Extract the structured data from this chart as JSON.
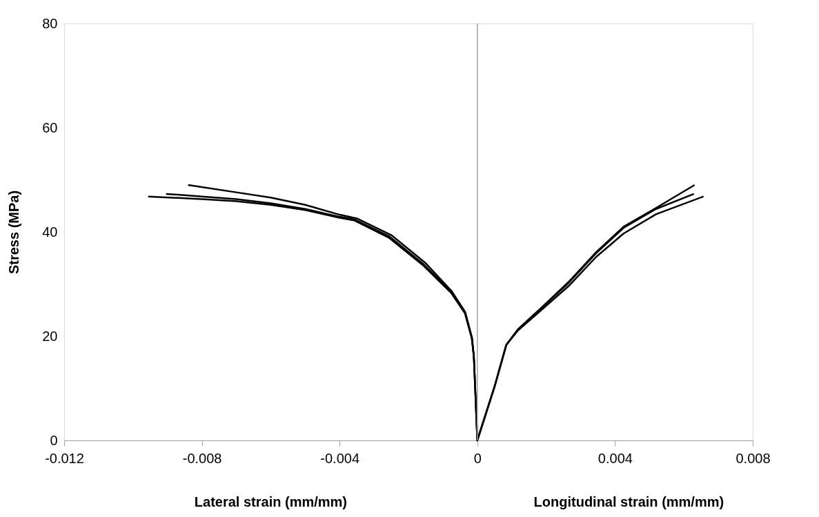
{
  "chart_data": {
    "type": "line",
    "xlabel": "Lateral strain (mm/mm)",
    "ylabel": "Stress  (MPa)",
    "annotations": [
      "Longitudinal strain (mm/mm)"
    ],
    "xlim": [
      -0.012,
      0.008
    ],
    "xticks": [
      -0.012,
      -0.008,
      -0.004,
      0,
      0.004,
      0.008
    ],
    "ylim": [
      0,
      80
    ],
    "yticks": [
      0,
      20,
      40,
      60,
      80
    ],
    "grid": false,
    "marker": "none",
    "line_style": "solid",
    "ref_lines": [
      {
        "axis": "x",
        "value": 0,
        "color": "#a0a0a0"
      }
    ],
    "series": [
      {
        "color": "#000000",
        "x": [
          -0.0084,
          -0.007,
          -0.006,
          -0.005,
          -0.004,
          -0.0035,
          -0.0025,
          -0.0015,
          -0.00074,
          -0.00035,
          -0.00015,
          -0.0001,
          -5e-05,
          0,
          0.0005,
          0.00084,
          0.00118,
          0.00184,
          0.00265,
          0.00345,
          0.00425,
          0.00519,
          0.00631
        ],
        "values": [
          49.0,
          47.6,
          46.6,
          45.2,
          43.3,
          42.6,
          39.4,
          34.0,
          28.6,
          24.6,
          19.6,
          16.0,
          8.1,
          0,
          10.3,
          18.3,
          21.3,
          25.3,
          30.4,
          36.1,
          41.0,
          44.6,
          49.0
        ]
      },
      {
        "color": "#000000",
        "x": [
          -0.00904,
          -0.008,
          -0.007,
          -0.006,
          -0.005,
          -0.004,
          -0.00357,
          -0.00257,
          -0.00156,
          -0.00076,
          -0.00036,
          -0.00016,
          -0.0001,
          -5e-05,
          0,
          0.0005,
          0.00084,
          0.00118,
          0.00184,
          0.00265,
          0.00345,
          0.00425,
          0.00519,
          0.00629
        ],
        "values": [
          47.3,
          46.8,
          46.3,
          45.5,
          44.4,
          42.9,
          42.4,
          39.2,
          33.8,
          28.5,
          24.5,
          19.6,
          16.0,
          8.1,
          0,
          10.3,
          18.3,
          21.3,
          25.3,
          30.2,
          35.9,
          40.8,
          44.4,
          47.3
        ]
      },
      {
        "color": "#000000",
        "x": [
          -0.00956,
          -0.008,
          -0.007,
          -0.006,
          -0.005,
          -0.004,
          -0.00357,
          -0.00257,
          -0.00156,
          -0.00076,
          -0.00036,
          -0.00016,
          -0.0001,
          -5e-05,
          0,
          0.0005,
          0.00084,
          0.00118,
          0.00184,
          0.00265,
          0.00345,
          0.00425,
          0.00519,
          0.00657
        ],
        "values": [
          46.8,
          46.3,
          45.9,
          45.2,
          44.2,
          42.7,
          42.2,
          38.9,
          33.5,
          28.3,
          24.4,
          19.6,
          16.0,
          8.1,
          0,
          10.3,
          18.3,
          21.1,
          24.9,
          29.6,
          35.2,
          39.7,
          43.4,
          46.8
        ]
      }
    ]
  }
}
